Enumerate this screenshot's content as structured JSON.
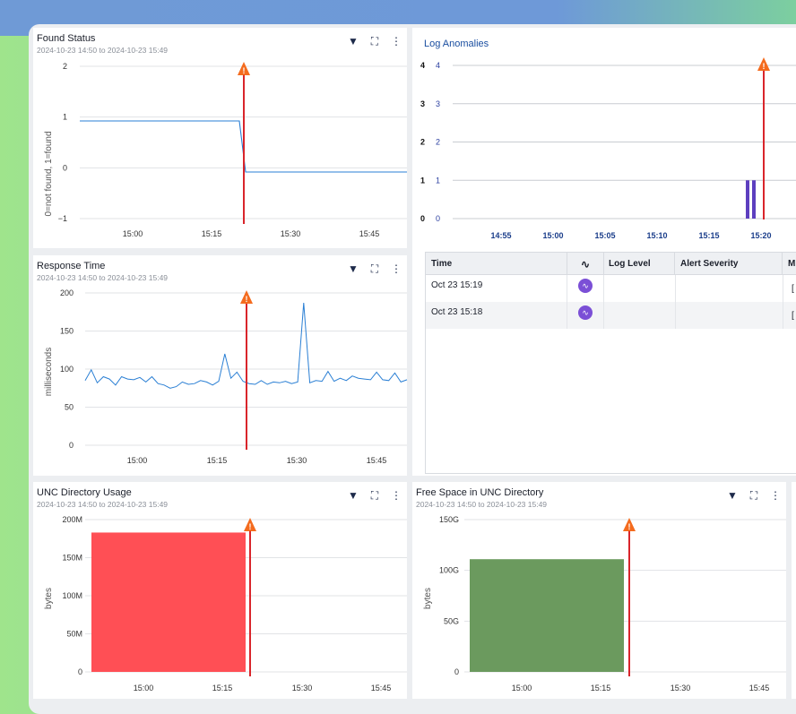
{
  "colors": {
    "accent": "#2a7fd4",
    "alert": "#d9252b",
    "warning": "#f46b1e",
    "anomaly": "#5d3fbf",
    "unc_bar": "#ff4f55",
    "free_bar": "#6b9a5e"
  },
  "time_axis": [
    "15:00",
    "15:15",
    "15:30",
    "15:45"
  ],
  "found_status": {
    "title": "Found Status",
    "subtitle": "2024-10-23 14:50 to 2024-10-23 15:49",
    "ylabel": "0=not found, 1=found",
    "chart_data": {
      "type": "line",
      "x": [
        "14:50",
        "15:20",
        "15:21",
        "15:49"
      ],
      "values": [
        1,
        1,
        0,
        0
      ],
      "yticks": [
        "2",
        "1",
        "0",
        "−1"
      ],
      "ylim": [
        -1,
        2
      ],
      "alert_time": "15:21"
    }
  },
  "response_time": {
    "title": "Response Time",
    "subtitle": "2024-10-23 14:50 to 2024-10-23 15:49",
    "ylabel": "milliseconds",
    "chart_data": {
      "type": "line",
      "yticks": [
        "200",
        "150",
        "100",
        "50",
        "0"
      ],
      "ylim": [
        0,
        200
      ],
      "values": [
        85,
        99,
        82,
        90,
        87,
        79,
        90,
        87,
        86,
        89,
        83,
        90,
        81,
        79,
        75,
        77,
        83,
        80,
        81,
        85,
        83,
        79,
        84,
        120,
        88,
        96,
        84,
        81,
        80,
        85,
        80,
        83,
        82,
        84,
        81,
        83,
        187,
        82,
        85,
        84,
        97,
        84,
        88,
        85,
        91,
        88,
        87,
        86,
        96,
        86,
        85,
        95,
        83,
        86
      ],
      "alert_time": "15:21"
    }
  },
  "log_anomalies": {
    "title": "Log Anomalies",
    "chart_data": {
      "type": "bar",
      "yticks_left": [
        "4",
        "3",
        "2",
        "1",
        "0"
      ],
      "yticks_right": [
        "4",
        "3",
        "2",
        "1",
        "0"
      ],
      "ylim": [
        0,
        4
      ],
      "xticks": [
        "14:55",
        "15:00",
        "15:05",
        "15:10",
        "15:15",
        "15:20"
      ],
      "bars": [
        {
          "time": "15:18",
          "value": 1
        },
        {
          "time": "15:19",
          "value": 1
        }
      ],
      "alert_time": "15:20"
    }
  },
  "table": {
    "columns": [
      "Time",
      "",
      "Log Level",
      "Alert Severity",
      "M"
    ],
    "rows": [
      {
        "time": "Oct 23 15:19",
        "trail": "["
      },
      {
        "time": "Oct 23 15:18",
        "trail": "["
      }
    ]
  },
  "unc_usage": {
    "title": "UNC Directory Usage",
    "subtitle": "2024-10-23 14:50 to 2024-10-23 15:49",
    "ylabel": "bytes",
    "chart_data": {
      "type": "area",
      "yticks": [
        "200M",
        "150M",
        "100M",
        "50M",
        "0"
      ],
      "ylim": [
        0,
        200
      ],
      "unit": "M",
      "value": 183,
      "from": "14:50",
      "to": "15:20",
      "alert_time": "15:21"
    }
  },
  "free_space": {
    "title": "Free Space in UNC Directory",
    "subtitle": "2024-10-23 14:50 to 2024-10-23 15:49",
    "ylabel": "bytes",
    "chart_data": {
      "type": "area",
      "yticks": [
        "150G",
        "100G",
        "50G",
        "0"
      ],
      "ylim": [
        0,
        150
      ],
      "unit": "G",
      "value": 111,
      "from": "14:50",
      "to": "15:20",
      "alert_time": "15:21"
    }
  },
  "icons": {
    "filter": "filter-icon",
    "expand": "expand-icon",
    "more": "more-icon",
    "warning": "warning-icon",
    "anomaly": "anomaly-icon"
  }
}
